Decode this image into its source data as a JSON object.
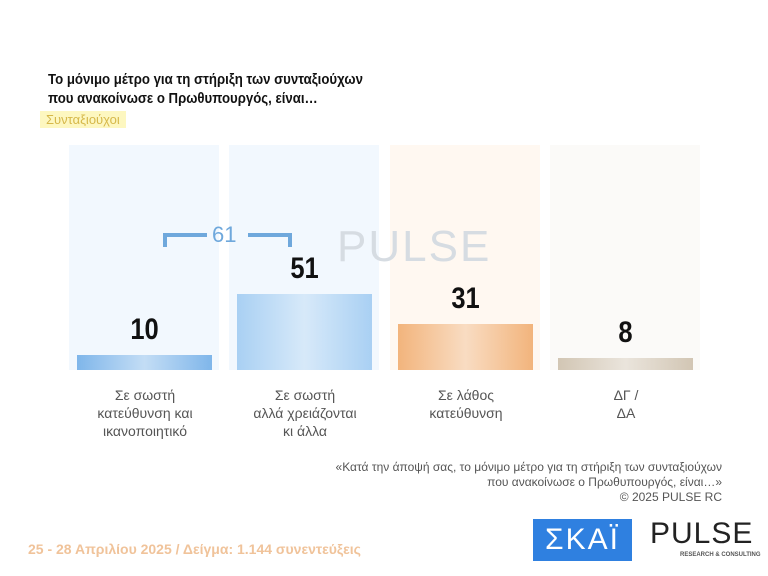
{
  "title_line1": "Το μόνιμο μέτρο  για τη στήριξη των συνταξιούχων",
  "title_line2": "που ανακοίνωσε ο Πρωθυπουργός, είναι…",
  "subgroup": "Συνταξιούχοι",
  "chart_data": {
    "type": "bar",
    "categories": [
      [
        "Σε σωστή",
        "κατεύθυνση και",
        "ικανοποιητικό"
      ],
      [
        "Σε σωστή",
        "αλλά χρειάζονται",
        "κι άλλα"
      ],
      [
        "Σε λάθος",
        "κατεύθυνση"
      ],
      [
        "ΔΓ /",
        "ΔΑ"
      ]
    ],
    "values": [
      10,
      51,
      31,
      8
    ],
    "colors": [
      "#7fb6ea",
      "#a9d0f3",
      "#f2b47c",
      "#d2c6b4"
    ],
    "bracket_total": "61",
    "ylim": [
      0,
      100
    ]
  },
  "watermark": "PULSE",
  "note_line1": "«Κατά την άποψή σας, το μόνιμο μέτρο  για τη στήριξη των συνταξιούχων",
  "note_line2": "που ανακοίνωσε ο Πρωθυπουργός, είναι…»",
  "copyright": "©  2025  PULSE RC",
  "footer": "25 - 28 Απριλίου 2025  /  Δείγμα:  1.144 συνεντεύξεις",
  "logo_skai": "ΣΚΑΪ",
  "logo_pulse": "PULSE",
  "logo_pulse_sub": "RESEARCH & CONSULTING"
}
